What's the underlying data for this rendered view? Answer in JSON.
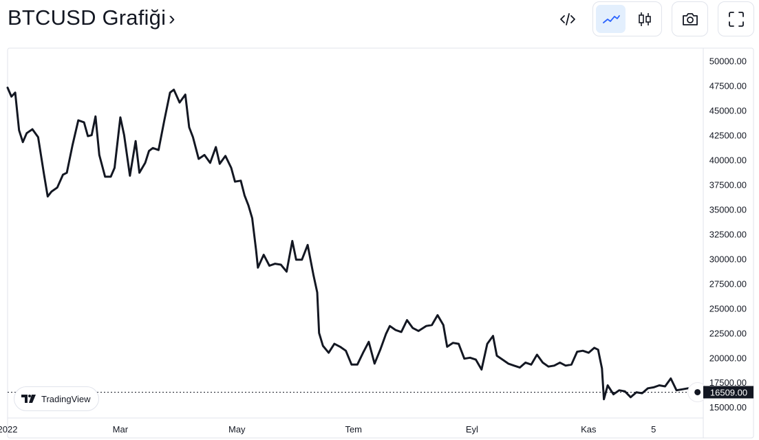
{
  "header": {
    "title": "BTCUSD Grafiği",
    "chevron": "›"
  },
  "toolbar": {
    "embed_icon": "code-icon",
    "line_chart_icon": "line-chart-icon",
    "candle_chart_icon": "candlestick-icon",
    "camera_icon": "camera-icon",
    "fullscreen_icon": "fullscreen-icon",
    "active_chart": "line"
  },
  "watermark": {
    "label": "TradingView"
  },
  "colors": {
    "line": "#131722",
    "active_toggle_bg": "#e3effd",
    "accent": "#2962ff",
    "border": "#e0e3eb",
    "price_tag_bg": "#131722"
  },
  "chart_data": {
    "type": "line",
    "ylim": [
      13900,
      51300
    ],
    "ytick_labels": [
      "50000.00",
      "47500.00",
      "45000.00",
      "42500.00",
      "40000.00",
      "37500.00",
      "35000.00",
      "32500.00",
      "30000.00",
      "27500.00",
      "25000.00",
      "22500.00",
      "20000.00",
      "17500.00",
      "15000.00"
    ],
    "yticks": [
      50000,
      47500,
      45000,
      42500,
      40000,
      37500,
      35000,
      32500,
      30000,
      27500,
      25000,
      22500,
      20000,
      17500,
      15000
    ],
    "xtick_labels": [
      "2022",
      "Mar",
      "May",
      "Tem",
      "Eyl",
      "Kas",
      "5"
    ],
    "xticks": [
      "2022-01-01",
      "2022-03-01",
      "2022-05-01",
      "2022-07-01",
      "2022-09-01",
      "2022-11-01",
      "2022-12-05"
    ],
    "x_range": [
      "2022-01-01",
      "2022-12-31"
    ],
    "current_price_label": "16509.00",
    "current_price": 16509,
    "series": [
      {
        "x": [
          "2022-01-01",
          "2022-01-03",
          "2022-01-05",
          "2022-01-07",
          "2022-01-09",
          "2022-01-11",
          "2022-01-14",
          "2022-01-17",
          "2022-01-20",
          "2022-01-22",
          "2022-01-24",
          "2022-01-27",
          "2022-01-30",
          "2022-02-01",
          "2022-02-04",
          "2022-02-07",
          "2022-02-10",
          "2022-02-12",
          "2022-02-14",
          "2022-02-16",
          "2022-02-18",
          "2022-02-21",
          "2022-02-24",
          "2022-02-26",
          "2022-03-01",
          "2022-03-03",
          "2022-03-06",
          "2022-03-09",
          "2022-03-11",
          "2022-03-14",
          "2022-03-16",
          "2022-03-18",
          "2022-03-21",
          "2022-03-24",
          "2022-03-27",
          "2022-03-29",
          "2022-04-01",
          "2022-04-04",
          "2022-04-06",
          "2022-04-08",
          "2022-04-11",
          "2022-04-14",
          "2022-04-17",
          "2022-04-20",
          "2022-04-22",
          "2022-04-25",
          "2022-04-28",
          "2022-04-30",
          "2022-05-03",
          "2022-05-05",
          "2022-05-07",
          "2022-05-09",
          "2022-05-11",
          "2022-05-12",
          "2022-05-15",
          "2022-05-18",
          "2022-05-21",
          "2022-05-24",
          "2022-05-27",
          "2022-05-30",
          "2022-06-01",
          "2022-06-04",
          "2022-06-07",
          "2022-06-10",
          "2022-06-12",
          "2022-06-13",
          "2022-06-15",
          "2022-06-18",
          "2022-06-21",
          "2022-06-24",
          "2022-06-27",
          "2022-06-30",
          "2022-07-03",
          "2022-07-06",
          "2022-07-09",
          "2022-07-12",
          "2022-07-15",
          "2022-07-18",
          "2022-07-20",
          "2022-07-23",
          "2022-07-26",
          "2022-07-29",
          "2022-08-01",
          "2022-08-04",
          "2022-08-08",
          "2022-08-11",
          "2022-08-14",
          "2022-08-17",
          "2022-08-19",
          "2022-08-22",
          "2022-08-25",
          "2022-08-28",
          "2022-08-31",
          "2022-09-03",
          "2022-09-06",
          "2022-09-09",
          "2022-09-12",
          "2022-09-14",
          "2022-09-17",
          "2022-09-20",
          "2022-09-23",
          "2022-09-26",
          "2022-09-29",
          "2022-10-02",
          "2022-10-05",
          "2022-10-08",
          "2022-10-11",
          "2022-10-14",
          "2022-10-17",
          "2022-10-20",
          "2022-10-23",
          "2022-10-26",
          "2022-10-29",
          "2022-11-01",
          "2022-11-04",
          "2022-11-06",
          "2022-11-08",
          "2022-11-09",
          "2022-11-11",
          "2022-11-14",
          "2022-11-17",
          "2022-11-20",
          "2022-11-23",
          "2022-11-26",
          "2022-11-29",
          "2022-12-02",
          "2022-12-05",
          "2022-12-08",
          "2022-12-11",
          "2022-12-14",
          "2022-12-17",
          "2022-12-20",
          "2022-12-23",
          "2022-12-26",
          "2022-12-28"
        ],
        "values": [
          47300,
          46400,
          46800,
          43000,
          41800,
          42700,
          43100,
          42300,
          38600,
          36300,
          36800,
          37200,
          38500,
          38700,
          41500,
          44000,
          43800,
          42400,
          42500,
          44400,
          40500,
          38300,
          38300,
          39200,
          44300,
          42500,
          38400,
          41900,
          38700,
          39700,
          40900,
          41200,
          41000,
          44000,
          46800,
          47100,
          45800,
          46600,
          43300,
          42300,
          40100,
          40500,
          39700,
          41300,
          39600,
          40400,
          39200,
          37800,
          37900,
          36400,
          35400,
          34100,
          30900,
          29100,
          30400,
          29300,
          29500,
          29400,
          28700,
          31800,
          29900,
          29900,
          31400,
          28400,
          26600,
          22500,
          21200,
          20500,
          21400,
          21100,
          20700,
          19300,
          19300,
          20500,
          21600,
          19400,
          20800,
          22400,
          23200,
          22800,
          22600,
          23800,
          23000,
          22700,
          23200,
          23300,
          24300,
          23300,
          21100,
          21500,
          21400,
          19900,
          20000,
          19800,
          18800,
          21400,
          22200,
          20200,
          19800,
          19400,
          19200,
          19000,
          19500,
          19300,
          20300,
          19500,
          19100,
          19200,
          19500,
          19200,
          19300,
          20600,
          20700,
          20500,
          21000,
          20800,
          18900,
          15800,
          17200,
          16300,
          16700,
          16600,
          16000,
          16500,
          16400,
          16900,
          17000,
          17200,
          17100,
          17900,
          16700,
          16800,
          16900,
          16700,
          16509
        ]
      }
    ]
  }
}
